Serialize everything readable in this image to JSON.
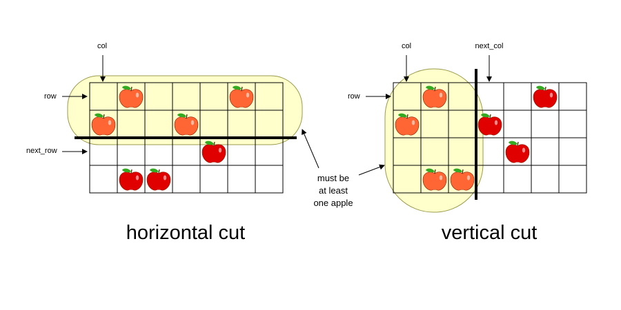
{
  "colors": {
    "highlight_fill": "#FFFFCC",
    "highlight_stroke": "#99994C",
    "cut_line": "#000000",
    "grid_line": "#000000",
    "apple_left_highlighted": "#FF6633",
    "apple_right_highlighted": "#FF6633",
    "apple_other": "#E00000",
    "leaf": "#33AA22"
  },
  "horizontal": {
    "caption": "horizontal cut",
    "labels": {
      "col": "col",
      "row": "row",
      "next_row": "next_row"
    },
    "rows": 4,
    "cols": 7,
    "apples": [
      [
        0,
        1
      ],
      [
        0,
        5
      ],
      [
        1,
        0
      ],
      [
        1,
        3
      ],
      [
        2,
        4
      ],
      [
        3,
        1
      ],
      [
        3,
        2
      ]
    ],
    "highlighted_rows": 2
  },
  "vertical": {
    "caption": "vertical cut",
    "labels": {
      "col": "col",
      "next_col": "next_col",
      "row": "row"
    },
    "rows": 4,
    "cols": 7,
    "apples": [
      [
        0,
        1
      ],
      [
        0,
        5
      ],
      [
        1,
        0
      ],
      [
        1,
        3
      ],
      [
        2,
        4
      ],
      [
        3,
        1
      ],
      [
        3,
        2
      ]
    ],
    "highlighted_cols": 3
  },
  "note": {
    "lines": [
      "must be",
      "at least",
      "one apple"
    ]
  }
}
